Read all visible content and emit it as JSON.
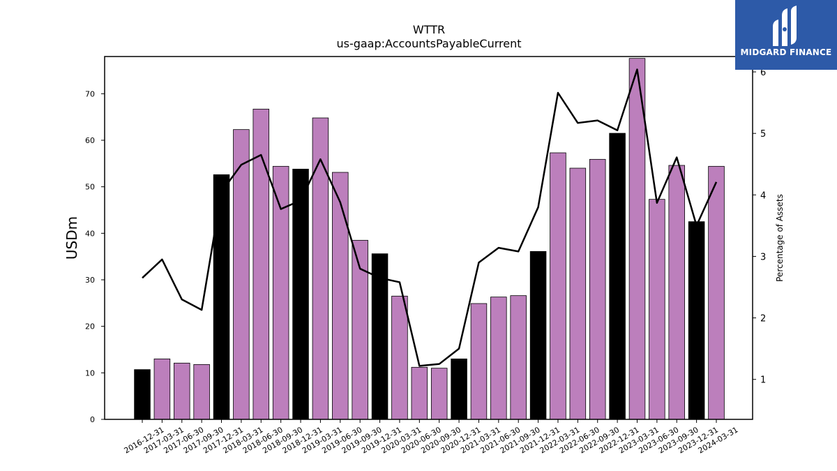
{
  "brand": {
    "name": "MIDGARD FINANCE",
    "logo_icon": "midgard-logo-icon",
    "background": "#2d5aa8",
    "text_color": "#ffffff"
  },
  "chart_data": {
    "type": "bar",
    "title": "WTTR",
    "subtitle": "us-gaap:AccountsPayableCurrent",
    "ylabel": "USDm",
    "ylabel_right": "Percentage of Assets",
    "ylim": [
      0,
      78
    ],
    "y2lim": [
      0.35,
      6.25
    ],
    "yticks": [
      0,
      10,
      20,
      30,
      40,
      50,
      60,
      70
    ],
    "y2ticks": [
      1,
      2,
      3,
      4,
      5,
      6
    ],
    "grid": false,
    "legend": "none",
    "colors": {
      "year_end": "#000000",
      "quarter": "#bc7fbc",
      "line": "#000000"
    },
    "categories": [
      "2016-12-31",
      "2017-03-31",
      "2017-06-30",
      "2017-09-30",
      "2017-12-31",
      "2018-03-31",
      "2018-06-30",
      "2018-09-30",
      "2018-12-31",
      "2019-03-31",
      "2019-06-30",
      "2019-09-30",
      "2019-12-31",
      "2020-03-31",
      "2020-06-30",
      "2020-09-30",
      "2020-12-31",
      "2021-03-31",
      "2021-06-30",
      "2021-09-30",
      "2021-12-31",
      "2022-03-31",
      "2022-06-30",
      "2022-09-30",
      "2022-12-31",
      "2023-03-31",
      "2023-06-30",
      "2023-09-30",
      "2023-12-31",
      "2024-03-31"
    ],
    "series": [
      {
        "type": "bar",
        "axis": "left",
        "values": [
          10.7,
          13.0,
          12.1,
          11.8,
          52.6,
          62.3,
          66.7,
          54.4,
          53.8,
          64.8,
          53.1,
          38.5,
          35.6,
          26.5,
          11.2,
          11.0,
          13.0,
          24.9,
          26.3,
          26.6,
          36.1,
          57.3,
          54.0,
          55.9,
          61.5,
          77.6,
          47.3,
          54.6,
          42.5,
          54.4
        ]
      },
      {
        "type": "line",
        "axis": "right",
        "values": [
          2.65,
          2.95,
          2.3,
          2.13,
          4.05,
          4.49,
          4.65,
          3.77,
          3.91,
          4.58,
          3.88,
          2.8,
          2.65,
          2.58,
          1.22,
          1.25,
          1.5,
          2.9,
          3.14,
          3.08,
          3.8,
          5.66,
          5.17,
          5.21,
          5.05,
          6.04,
          3.87,
          4.61,
          3.5,
          4.21
        ]
      }
    ],
    "year_end_flags": [
      true,
      false,
      false,
      false,
      true,
      false,
      false,
      false,
      true,
      false,
      false,
      false,
      true,
      false,
      false,
      false,
      true,
      false,
      false,
      false,
      true,
      false,
      false,
      false,
      true,
      false,
      false,
      false,
      true,
      false
    ]
  }
}
